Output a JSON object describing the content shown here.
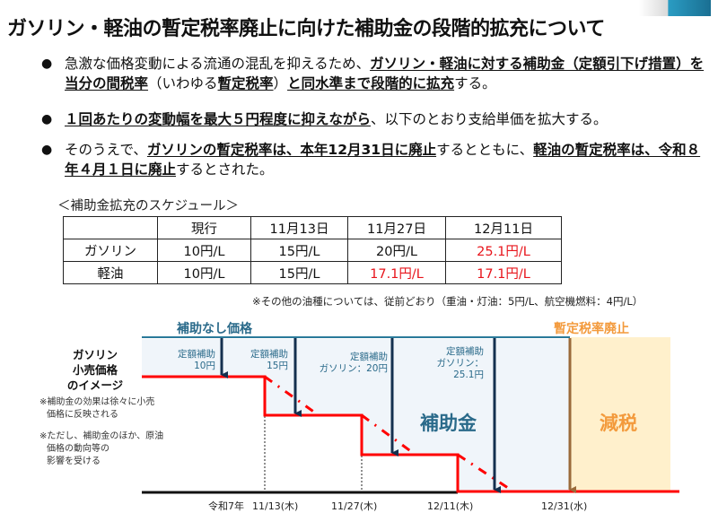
{
  "title": "ガソリン・軽油の暫定税率廃止に向けた補助金の段階的拡充について",
  "bullets": [
    {
      "parts": [
        {
          "text": "急激な価格変動による流通の混乱を抑えるため、",
          "emph": false
        },
        {
          "text": "ガソリン・軽油に対する補助金（定額引下げ措置）を当分の間税率",
          "emph": true
        },
        {
          "text": "（いわゆる",
          "emph": false
        },
        {
          "text": "暫定税率",
          "emph": true
        },
        {
          "text": "）",
          "emph": false
        },
        {
          "text": "と同水準まで段階的に拡充",
          "emph": true
        },
        {
          "text": "する。",
          "emph": false
        }
      ]
    },
    {
      "parts": [
        {
          "text": "１回あたりの変動幅を最大５円程度に抑えながら",
          "emph": true
        },
        {
          "text": "、以下のとおり支給単価を拡大する。",
          "emph": false
        }
      ]
    },
    {
      "parts": [
        {
          "text": "そのうえで、",
          "emph": false
        },
        {
          "text": "ガソリンの暫定税率は、本年12月31日に廃止",
          "emph": true
        },
        {
          "text": "するとともに、",
          "emph": false
        },
        {
          "text": "軽油の暫定税率は、令和８年４月１日に廃止",
          "emph": true
        },
        {
          "text": "するとされた。",
          "emph": false
        }
      ]
    }
  ],
  "schedule": {
    "caption": "＜補助金拡充のスケジュール＞",
    "headers": [
      "",
      "現行",
      "11月13日",
      "11月27日",
      "12月11日"
    ],
    "rows": [
      {
        "label": "ガソリン",
        "cells": [
          {
            "v": "10円/L",
            "red": false
          },
          {
            "v": "15円/L",
            "red": false
          },
          {
            "v": "20円/L",
            "red": false
          },
          {
            "v": "25.1円/L",
            "red": true
          }
        ]
      },
      {
        "label": "軽油",
        "cells": [
          {
            "v": "10円/L",
            "red": false
          },
          {
            "v": "15円/L",
            "red": false
          },
          {
            "v": "17.1円/L",
            "red": true
          },
          {
            "v": "17.1円/L",
            "red": true
          }
        ]
      }
    ],
    "note": "※その他の油種については、従前どおり（重油・灯油：5円/L、航空機燃料：4円/L）"
  },
  "diagram": {
    "top_label": "補助なし価格",
    "abolish_label": "暫定税率廃止",
    "side_title": [
      "ガソリン",
      "小売価格",
      "のイメージ"
    ],
    "side_notes": [
      [
        "※補助金の効果は徐々に小売",
        "価格に反映される"
      ],
      [
        "※ただし、補助金のほか、原油",
        "価格の動向等の",
        "影響を受ける"
      ]
    ],
    "arrows": [
      {
        "lines": [
          "定額補助",
          "10円"
        ]
      },
      {
        "lines": [
          "定額補助",
          "15円"
        ]
      },
      {
        "lines": [
          "定額補助",
          "ガソリン：20円"
        ]
      },
      {
        "lines": [
          "定額補助",
          "ガソリン：",
          "25.1円"
        ]
      }
    ],
    "subsidy_label": "補助金",
    "tax_cut_label": "減税",
    "axis": {
      "era": "令和7年",
      "ticks": [
        "11/13(木)",
        "11/27(木)",
        "12/11(木)",
        "12/31(水)"
      ]
    },
    "colors": {
      "price_line": "#ff0000",
      "subsidy_area": "#f0f5fa",
      "tax_cut_area": "#fff0cc",
      "arrow": "#14304f",
      "tax_arrow": "#9a6a3a",
      "top_line": "#2a7a9a",
      "orange_text": "#f39a3c"
    }
  }
}
